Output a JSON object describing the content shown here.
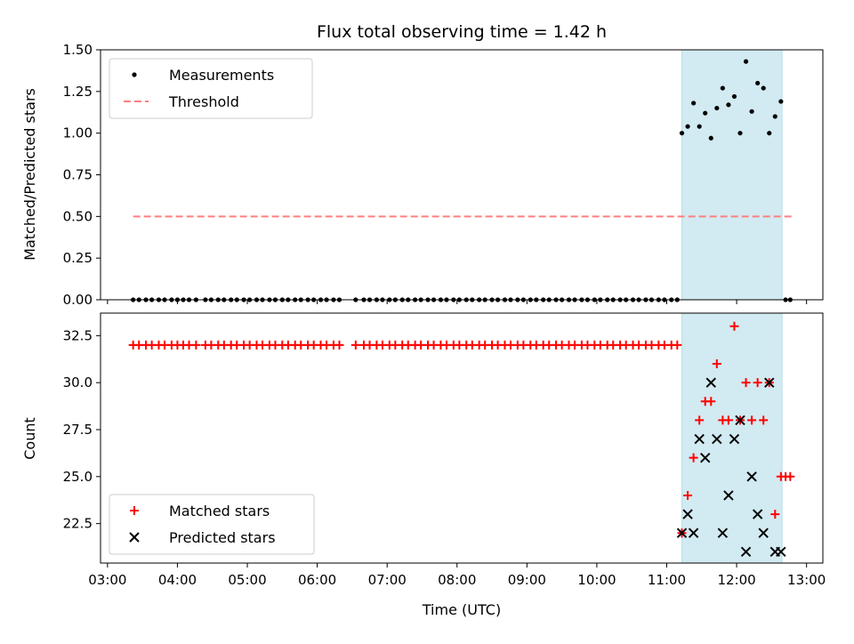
{
  "chart_data": [
    {
      "type": "scatter",
      "title": "Flux total observing time = 1.42 h",
      "xlabel": "",
      "ylabel": "Matched/Predicted stars",
      "xlim": [
        "02:54",
        "13:14"
      ],
      "ylim": [
        0,
        1.5
      ],
      "yticks": [
        "0.00",
        "0.25",
        "0.50",
        "0.75",
        "1.00",
        "1.25",
        "1.50"
      ],
      "shaded_span": [
        "11:13",
        "12:39"
      ],
      "shade_color": "#add8e6",
      "legend_position": "upper left",
      "series": [
        {
          "name": "Measurements",
          "marker": "dot",
          "color": "#000000",
          "points": [
            [
              "03:22",
              0
            ],
            [
              "03:27",
              0
            ],
            [
              "03:33",
              0
            ],
            [
              "03:38",
              0
            ],
            [
              "03:44",
              0
            ],
            [
              "03:49",
              0
            ],
            [
              "03:55",
              0
            ],
            [
              "04:00",
              0
            ],
            [
              "04:05",
              0
            ],
            [
              "04:10",
              0
            ],
            [
              "04:16",
              0
            ],
            [
              "04:24",
              0
            ],
            [
              "04:29",
              0
            ],
            [
              "04:35",
              0
            ],
            [
              "04:40",
              0
            ],
            [
              "04:46",
              0
            ],
            [
              "04:51",
              0
            ],
            [
              "04:57",
              0
            ],
            [
              "05:02",
              0
            ],
            [
              "05:08",
              0
            ],
            [
              "05:13",
              0
            ],
            [
              "05:19",
              0
            ],
            [
              "05:24",
              0
            ],
            [
              "05:30",
              0
            ],
            [
              "05:35",
              0
            ],
            [
              "05:41",
              0
            ],
            [
              "05:46",
              0
            ],
            [
              "05:52",
              0
            ],
            [
              "05:57",
              0
            ],
            [
              "06:03",
              0
            ],
            [
              "06:08",
              0
            ],
            [
              "06:14",
              0
            ],
            [
              "06:19",
              0
            ],
            [
              "06:33",
              0
            ],
            [
              "06:40",
              0
            ],
            [
              "06:45",
              0
            ],
            [
              "06:51",
              0
            ],
            [
              "06:56",
              0
            ],
            [
              "07:02",
              0
            ],
            [
              "07:07",
              0
            ],
            [
              "07:13",
              0
            ],
            [
              "07:18",
              0
            ],
            [
              "07:24",
              0
            ],
            [
              "07:29",
              0
            ],
            [
              "07:35",
              0
            ],
            [
              "07:40",
              0
            ],
            [
              "07:46",
              0
            ],
            [
              "07:51",
              0
            ],
            [
              "07:57",
              0
            ],
            [
              "08:02",
              0
            ],
            [
              "08:08",
              0
            ],
            [
              "08:13",
              0
            ],
            [
              "08:19",
              0
            ],
            [
              "08:24",
              0
            ],
            [
              "08:30",
              0
            ],
            [
              "08:35",
              0
            ],
            [
              "08:41",
              0
            ],
            [
              "08:46",
              0
            ],
            [
              "08:52",
              0
            ],
            [
              "08:57",
              0
            ],
            [
              "09:03",
              0
            ],
            [
              "09:08",
              0
            ],
            [
              "09:14",
              0
            ],
            [
              "09:19",
              0
            ],
            [
              "09:25",
              0
            ],
            [
              "09:30",
              0
            ],
            [
              "09:36",
              0
            ],
            [
              "09:41",
              0
            ],
            [
              "09:47",
              0
            ],
            [
              "09:52",
              0
            ],
            [
              "09:58",
              0
            ],
            [
              "10:03",
              0
            ],
            [
              "10:09",
              0
            ],
            [
              "10:14",
              0
            ],
            [
              "10:20",
              0
            ],
            [
              "10:25",
              0
            ],
            [
              "10:31",
              0
            ],
            [
              "10:36",
              0
            ],
            [
              "10:42",
              0
            ],
            [
              "10:47",
              0
            ],
            [
              "10:53",
              0
            ],
            [
              "10:58",
              0
            ],
            [
              "11:04",
              0
            ],
            [
              "11:09",
              0
            ],
            [
              "11:13",
              1.0
            ],
            [
              "11:18",
              1.04
            ],
            [
              "11:23",
              1.18
            ],
            [
              "11:28",
              1.04
            ],
            [
              "11:33",
              1.12
            ],
            [
              "11:38",
              0.97
            ],
            [
              "11:43",
              1.15
            ],
            [
              "11:48",
              1.27
            ],
            [
              "11:53",
              1.17
            ],
            [
              "11:58",
              1.22
            ],
            [
              "12:03",
              1.0
            ],
            [
              "12:08",
              1.43
            ],
            [
              "12:13",
              1.13
            ],
            [
              "12:18",
              1.3
            ],
            [
              "12:23",
              1.27
            ],
            [
              "12:28",
              1.0
            ],
            [
              "12:33",
              1.1
            ],
            [
              "12:38",
              1.19
            ],
            [
              "12:42",
              0
            ],
            [
              "12:46",
              0
            ]
          ]
        },
        {
          "name": "Threshold",
          "type": "line",
          "style": "dashed",
          "color": "#ff7f7f",
          "x": [
            "03:22",
            "12:48"
          ],
          "y": [
            0.5,
            0.5
          ]
        }
      ]
    },
    {
      "type": "scatter",
      "title": "",
      "xlabel": "Time (UTC)",
      "ylabel": "Count",
      "xlim": [
        "02:54",
        "13:14"
      ],
      "ylim": [
        20.4,
        33.7
      ],
      "xticks": [
        "03:00",
        "04:00",
        "05:00",
        "06:00",
        "07:00",
        "08:00",
        "09:00",
        "10:00",
        "11:00",
        "12:00",
        "13:00"
      ],
      "yticks": [
        "22.5",
        "25.0",
        "27.5",
        "30.0",
        "32.5"
      ],
      "shaded_span": [
        "11:13",
        "12:39"
      ],
      "shade_color": "#add8e6",
      "legend_position": "lower left",
      "series": [
        {
          "name": "Matched stars",
          "marker": "plus",
          "color": "#ff0000",
          "points": [
            [
              "03:22",
              32
            ],
            [
              "03:27",
              32
            ],
            [
              "03:33",
              32
            ],
            [
              "03:38",
              32
            ],
            [
              "03:44",
              32
            ],
            [
              "03:49",
              32
            ],
            [
              "03:55",
              32
            ],
            [
              "04:00",
              32
            ],
            [
              "04:05",
              32
            ],
            [
              "04:10",
              32
            ],
            [
              "04:16",
              32
            ],
            [
              "04:24",
              32
            ],
            [
              "04:29",
              32
            ],
            [
              "04:35",
              32
            ],
            [
              "04:40",
              32
            ],
            [
              "04:46",
              32
            ],
            [
              "04:51",
              32
            ],
            [
              "04:57",
              32
            ],
            [
              "05:02",
              32
            ],
            [
              "05:08",
              32
            ],
            [
              "05:13",
              32
            ],
            [
              "05:19",
              32
            ],
            [
              "05:24",
              32
            ],
            [
              "05:30",
              32
            ],
            [
              "05:35",
              32
            ],
            [
              "05:41",
              32
            ],
            [
              "05:46",
              32
            ],
            [
              "05:52",
              32
            ],
            [
              "05:57",
              32
            ],
            [
              "06:03",
              32
            ],
            [
              "06:08",
              32
            ],
            [
              "06:14",
              32
            ],
            [
              "06:19",
              32
            ],
            [
              "06:33",
              32
            ],
            [
              "06:40",
              32
            ],
            [
              "06:45",
              32
            ],
            [
              "06:51",
              32
            ],
            [
              "06:56",
              32
            ],
            [
              "07:02",
              32
            ],
            [
              "07:07",
              32
            ],
            [
              "07:13",
              32
            ],
            [
              "07:18",
              32
            ],
            [
              "07:24",
              32
            ],
            [
              "07:29",
              32
            ],
            [
              "07:35",
              32
            ],
            [
              "07:40",
              32
            ],
            [
              "07:46",
              32
            ],
            [
              "07:51",
              32
            ],
            [
              "07:57",
              32
            ],
            [
              "08:02",
              32
            ],
            [
              "08:08",
              32
            ],
            [
              "08:13",
              32
            ],
            [
              "08:19",
              32
            ],
            [
              "08:24",
              32
            ],
            [
              "08:30",
              32
            ],
            [
              "08:35",
              32
            ],
            [
              "08:41",
              32
            ],
            [
              "08:46",
              32
            ],
            [
              "08:52",
              32
            ],
            [
              "08:57",
              32
            ],
            [
              "09:03",
              32
            ],
            [
              "09:08",
              32
            ],
            [
              "09:14",
              32
            ],
            [
              "09:19",
              32
            ],
            [
              "09:25",
              32
            ],
            [
              "09:30",
              32
            ],
            [
              "09:36",
              32
            ],
            [
              "09:41",
              32
            ],
            [
              "09:47",
              32
            ],
            [
              "09:52",
              32
            ],
            [
              "09:58",
              32
            ],
            [
              "10:03",
              32
            ],
            [
              "10:09",
              32
            ],
            [
              "10:14",
              32
            ],
            [
              "10:20",
              32
            ],
            [
              "10:25",
              32
            ],
            [
              "10:31",
              32
            ],
            [
              "10:36",
              32
            ],
            [
              "10:42",
              32
            ],
            [
              "10:47",
              32
            ],
            [
              "10:53",
              32
            ],
            [
              "10:58",
              32
            ],
            [
              "11:04",
              32
            ],
            [
              "11:09",
              32
            ],
            [
              "11:13",
              22
            ],
            [
              "11:18",
              24
            ],
            [
              "11:23",
              26
            ],
            [
              "11:28",
              28
            ],
            [
              "11:33",
              29
            ],
            [
              "11:38",
              29
            ],
            [
              "11:43",
              31
            ],
            [
              "11:48",
              28
            ],
            [
              "11:53",
              28
            ],
            [
              "11:58",
              33
            ],
            [
              "12:03",
              28
            ],
            [
              "12:08",
              30
            ],
            [
              "12:13",
              28
            ],
            [
              "12:18",
              30
            ],
            [
              "12:23",
              28
            ],
            [
              "12:28",
              30
            ],
            [
              "12:33",
              23
            ],
            [
              "12:38",
              25
            ],
            [
              "12:42",
              25
            ],
            [
              "12:46",
              25
            ]
          ]
        },
        {
          "name": "Predicted stars",
          "marker": "x",
          "color": "#000000",
          "points": [
            [
              "11:13",
              22
            ],
            [
              "11:18",
              23
            ],
            [
              "11:23",
              22
            ],
            [
              "11:28",
              27
            ],
            [
              "11:33",
              26
            ],
            [
              "11:38",
              30
            ],
            [
              "11:43",
              27
            ],
            [
              "11:48",
              22
            ],
            [
              "11:53",
              24
            ],
            [
              "11:58",
              27
            ],
            [
              "12:03",
              28
            ],
            [
              "12:08",
              21
            ],
            [
              "12:13",
              25
            ],
            [
              "12:18",
              23
            ],
            [
              "12:23",
              22
            ],
            [
              "12:28",
              30
            ],
            [
              "12:33",
              21
            ],
            [
              "12:38",
              21
            ]
          ]
        }
      ]
    }
  ]
}
